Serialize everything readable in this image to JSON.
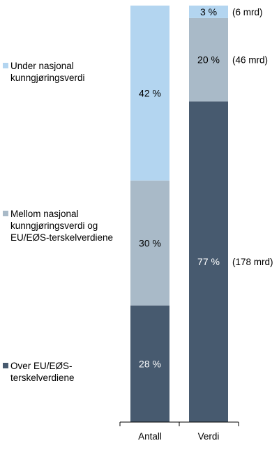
{
  "chart_data": {
    "type": "bar",
    "stacked": true,
    "normalized": true,
    "categories": [
      "Antall",
      "Verdi"
    ],
    "series": [
      {
        "name": "Over EU/EØS-terskelverdiene",
        "color": "#475a6f",
        "values": [
          28,
          77
        ],
        "labels": [
          "28 %",
          "77 %"
        ],
        "annotations": [
          "",
          "(178 mrd)"
        ]
      },
      {
        "name": "Mellom nasjonal kunngjøringsverdi og EU/EØS-terskelverdiene",
        "color": "#a9bac8",
        "values": [
          30,
          20
        ],
        "labels": [
          "30 %",
          "20 %"
        ],
        "annotations": [
          "",
          "(46 mrd)"
        ]
      },
      {
        "name": "Under nasjonal kunngjøringsverdi",
        "color": "#b3d5f0",
        "values": [
          42,
          3
        ],
        "labels": [
          "42 %",
          "3 %"
        ],
        "annotations": [
          "",
          "(6 mrd)"
        ]
      }
    ],
    "ylim": [
      0,
      100
    ],
    "grid": false,
    "legend_position": "left",
    "title": "",
    "xlabel": "",
    "ylabel": ""
  },
  "legend": [
    {
      "line1": "Under nasjonal",
      "line2": "kunngjøringsverdi",
      "line3": ""
    },
    {
      "line1": "Mellom nasjonal",
      "line2": "kunngjøringsverdi og",
      "line3": "EU/EØS-terskelverdiene"
    },
    {
      "line1": "Over EU/EØS-",
      "line2": "terskelverdiene",
      "line3": ""
    }
  ]
}
